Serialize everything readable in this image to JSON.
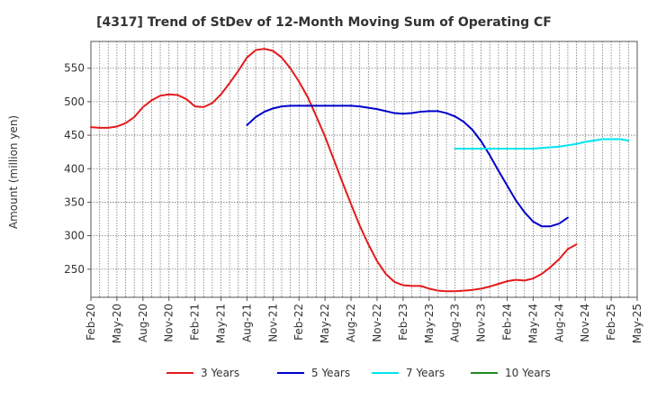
{
  "chart_data": {
    "type": "line",
    "title": "[4317]  Trend of StDev of 12-Month Moving Sum of Operating CF",
    "ylabel": "Amount (million yen)",
    "xlabel": "",
    "ylim": [
      208,
      590
    ],
    "yticks": [
      250,
      300,
      350,
      400,
      450,
      500,
      550
    ],
    "x_tick_labels": [
      "Feb-20",
      "May-20",
      "Aug-20",
      "Nov-20",
      "Feb-21",
      "May-21",
      "Aug-21",
      "Nov-21",
      "Feb-22",
      "May-22",
      "Aug-22",
      "Nov-22",
      "Feb-23",
      "May-23",
      "Aug-23",
      "Nov-23",
      "Feb-24",
      "May-24",
      "Aug-24",
      "Nov-24",
      "Feb-25",
      "May-25"
    ],
    "grid": true,
    "legend_position": "bottom",
    "series": [
      {
        "name": "3 Years",
        "color": "#e41a1c",
        "start_month_index": 0,
        "values": [
          462,
          461,
          461,
          463,
          468,
          477,
          492,
          502,
          509,
          511,
          510,
          504,
          493,
          492,
          498,
          511,
          528,
          546,
          566,
          577,
          579,
          576,
          566,
          550,
          530,
          507,
          478,
          448,
          414,
          380,
          347,
          315,
          287,
          262,
          243,
          231,
          226,
          225,
          225,
          221,
          218,
          217,
          217,
          218,
          219,
          221,
          224,
          228,
          232,
          234,
          233,
          236,
          243,
          253,
          265,
          280,
          287
        ]
      },
      {
        "name": "5 Years",
        "color": "#0000cd",
        "start_month_index": 18,
        "values": [
          465,
          477,
          485,
          490,
          493,
          494,
          494,
          494,
          494,
          494,
          494,
          494,
          494,
          493,
          491,
          489,
          486,
          483,
          482,
          483,
          485,
          486,
          486,
          483,
          478,
          470,
          458,
          441,
          420,
          397,
          375,
          353,
          335,
          321,
          314,
          314,
          318,
          327
        ]
      },
      {
        "name": "7 Years",
        "color": "#00e5ee",
        "start_month_index": 42,
        "values": [
          430,
          430,
          430,
          430,
          430,
          430,
          430,
          430,
          430,
          430,
          431,
          432,
          433,
          435,
          437,
          440,
          442,
          444,
          444,
          444,
          442
        ]
      },
      {
        "name": "10 Years",
        "color": "#228b22",
        "start_month_index": 0,
        "values": []
      }
    ]
  }
}
